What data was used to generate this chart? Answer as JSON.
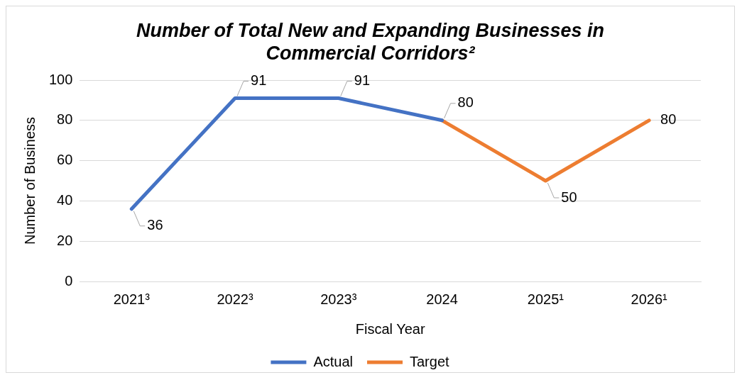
{
  "chart_data": {
    "type": "line",
    "title": "Number of Total New and Expanding Businesses in Commercial Corridors²",
    "xlabel": "Fiscal Year",
    "ylabel": "Number of Business",
    "categories": [
      "2021³",
      "2022³",
      "2023³",
      "2024",
      "2025¹",
      "2026¹"
    ],
    "series": [
      {
        "name": "Actual",
        "color": "#4472c4",
        "values": [
          36,
          91,
          91,
          80,
          null,
          null
        ],
        "value_labels": [
          "36",
          "91",
          "91",
          "80",
          null,
          null
        ]
      },
      {
        "name": "Target",
        "color": "#ed7d31",
        "values": [
          null,
          null,
          null,
          80,
          50,
          80
        ],
        "value_labels": [
          null,
          null,
          null,
          null,
          "50",
          "80"
        ]
      }
    ],
    "ylim": [
      0,
      100
    ],
    "yticks": [
      0,
      20,
      40,
      60,
      80,
      100
    ],
    "grid": "y",
    "legend": "bottom",
    "marker": "none",
    "line_style": "solid"
  }
}
